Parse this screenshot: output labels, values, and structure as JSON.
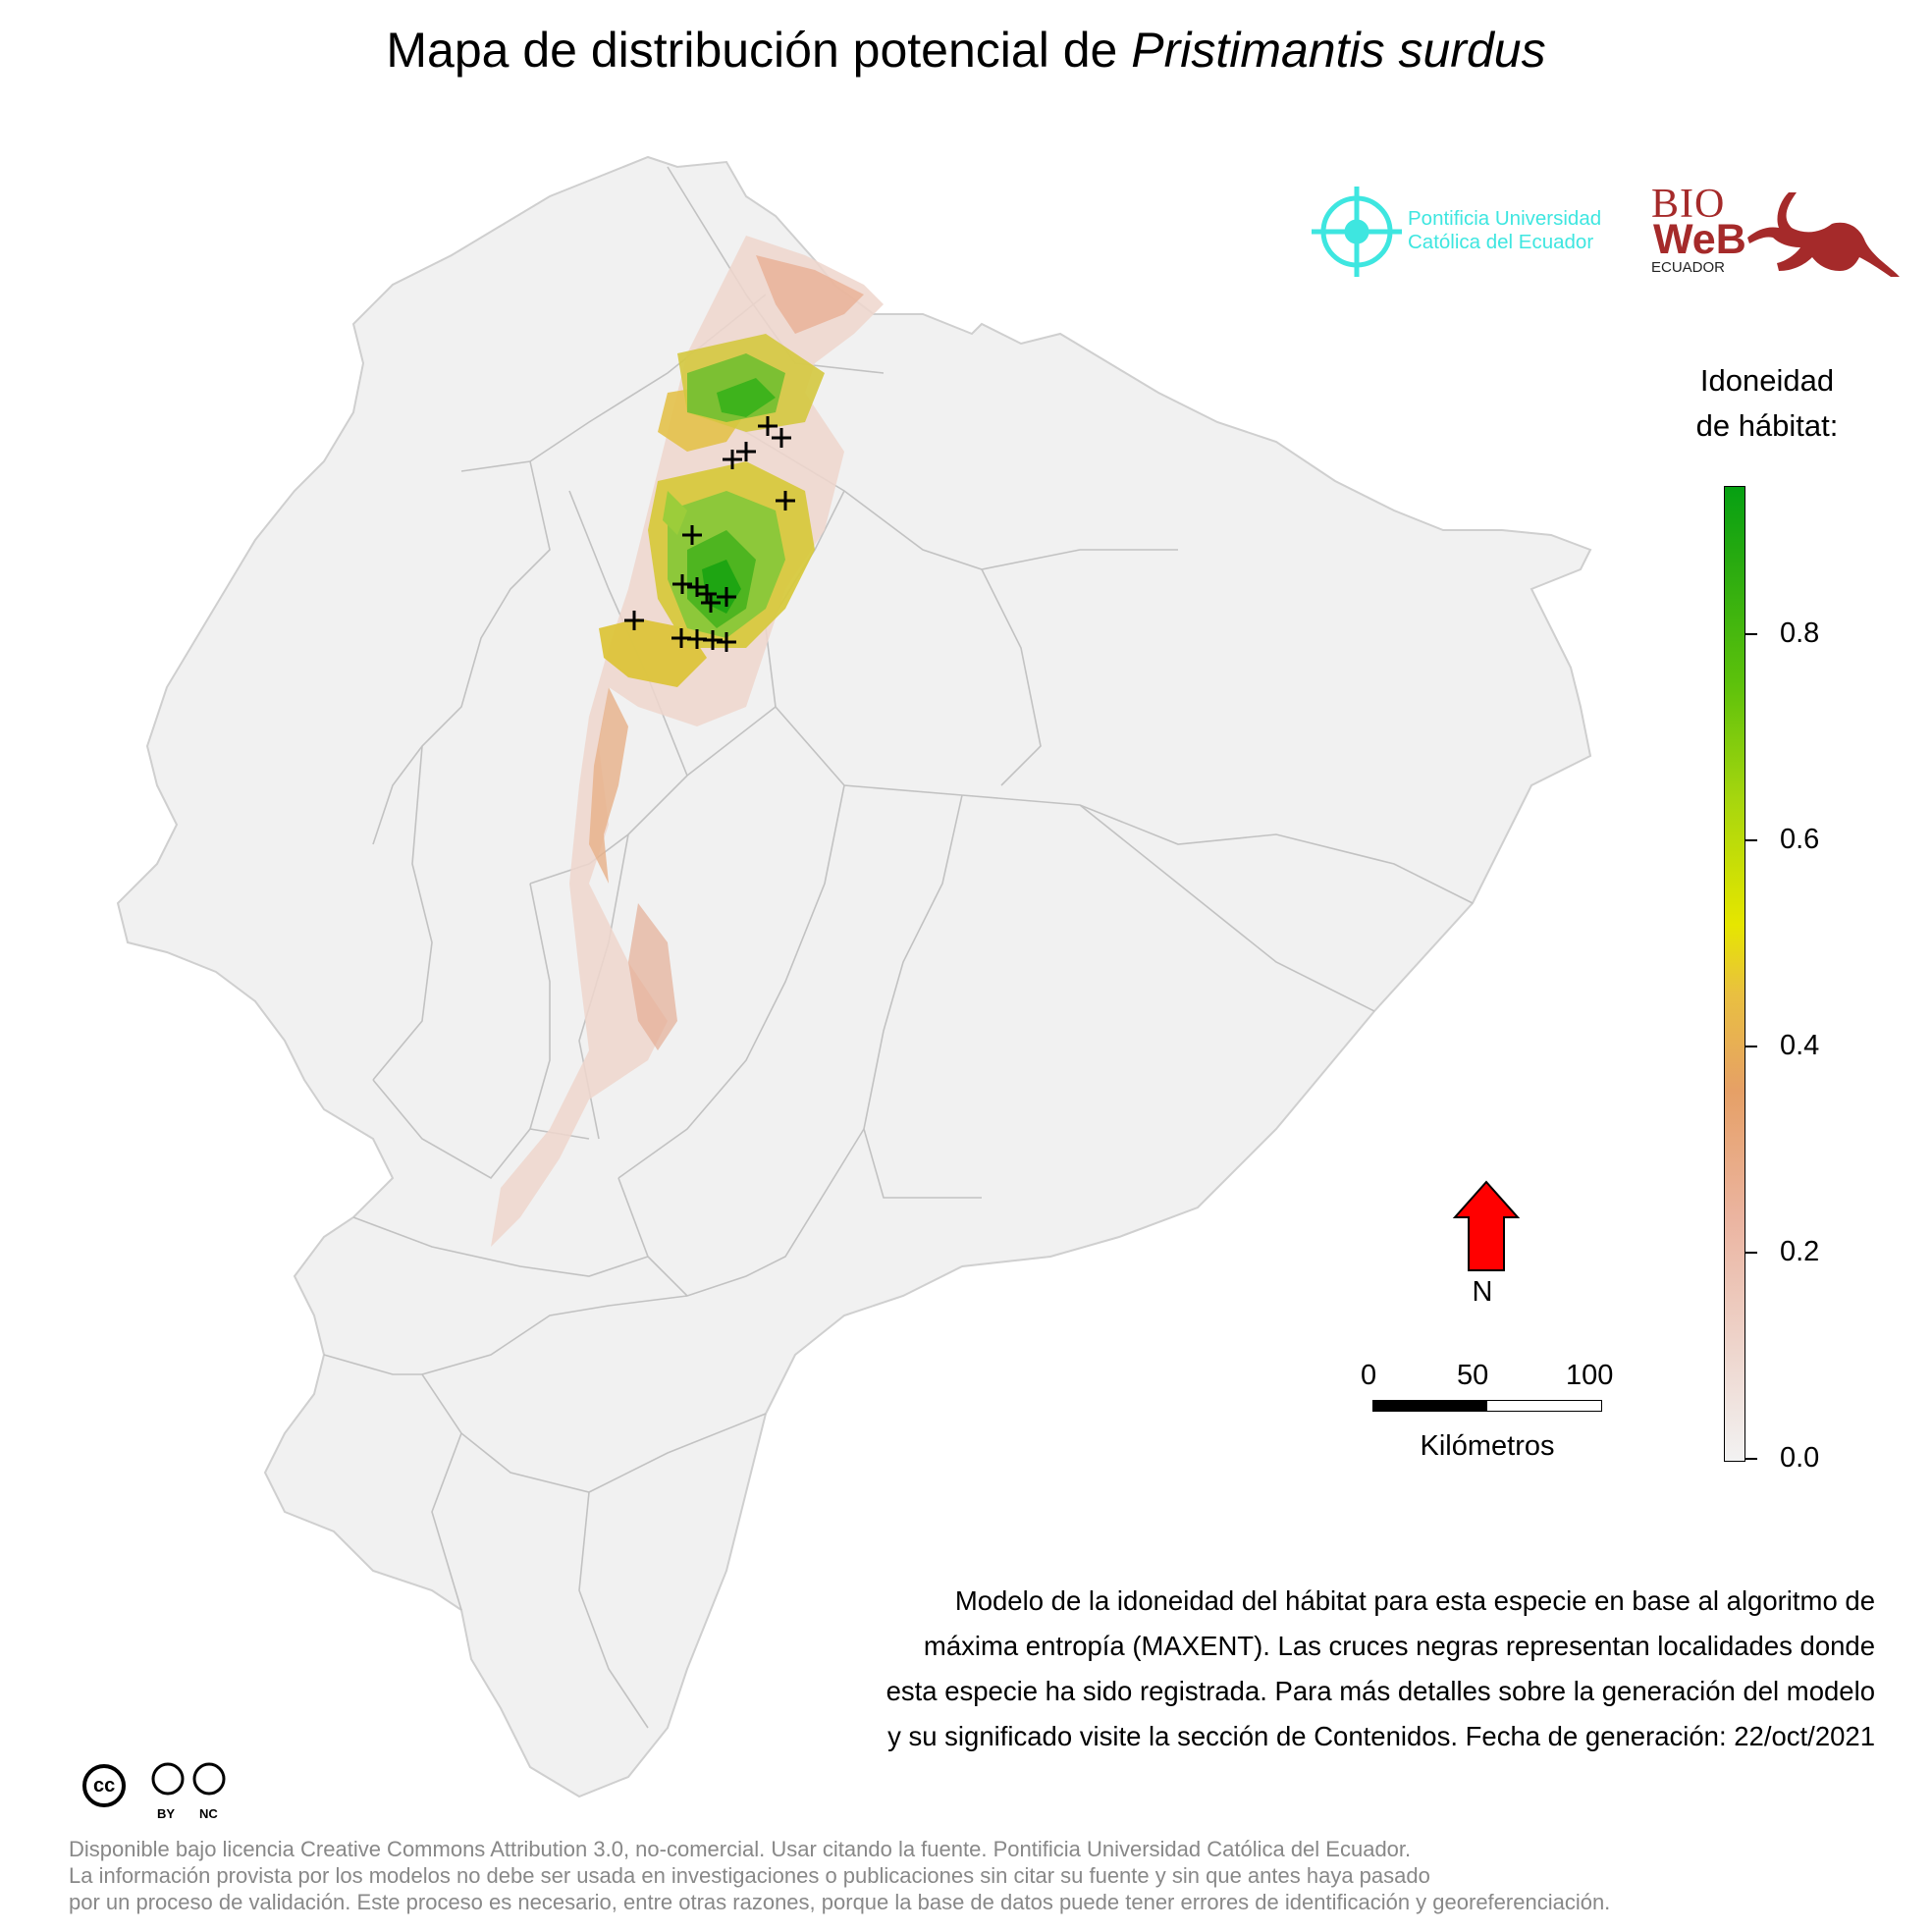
{
  "title": {
    "prefix": "Mapa de distribución potencial de ",
    "species": "Pristimantis surdus"
  },
  "logos": {
    "puce_line1": "Pontificia Universidad",
    "puce_line2": "Católica del Ecuador",
    "bioweb_bio": "BIO",
    "bioweb_web": "WeB",
    "bioweb_country": "ECUADOR"
  },
  "legend": {
    "title_line1": "Idoneidad",
    "title_line2": "de hábitat:",
    "ticks": [
      "0.8",
      "0.6",
      "0.4",
      "0.2",
      "0.0"
    ],
    "colors": {
      "low": "#f2f2f2",
      "mid": "#e6e600",
      "high": "#06a012"
    }
  },
  "north_arrow": {
    "label": "N",
    "color": "#ff0000"
  },
  "scale": {
    "labels": [
      "0",
      "50",
      "100"
    ],
    "unit": "Kilómetros"
  },
  "note": {
    "line1": "Modelo de la idoneidad del hábitat para esta especie en base al algoritmo de",
    "line2": "máxima entropía (MAXENT). Las cruces negras representan localidades donde",
    "line3": "esta especie ha sido registrada. Para más detalles sobre la generación del modelo",
    "line4": "y su significado visite la sección de Contenidos. Fecha de generación: 22/oct/2021"
  },
  "cc_badge": {
    "by": "BY",
    "nc": "NC",
    "cc": "cc"
  },
  "license": {
    "line1": "Disponible bajo licencia Creative Commons Attribution 3.0, no-comercial. Usar citando la fuente. Pontificia Universidad Católica del Ecuador.",
    "line2": "La información provista por los modelos no debe ser usada en investigaciones o publicaciones sin citar su fuente y sin que antes haya pasado",
    "line3": "por un proceso de validación. Este proceso es necesario, entre otras razones, porque la base de datos puede tener errores de identificación y georeferenciación."
  },
  "map": {
    "country_fill": "#f1f1f1",
    "border_color": "#c2c2c2",
    "marker_symbol": "+"
  }
}
